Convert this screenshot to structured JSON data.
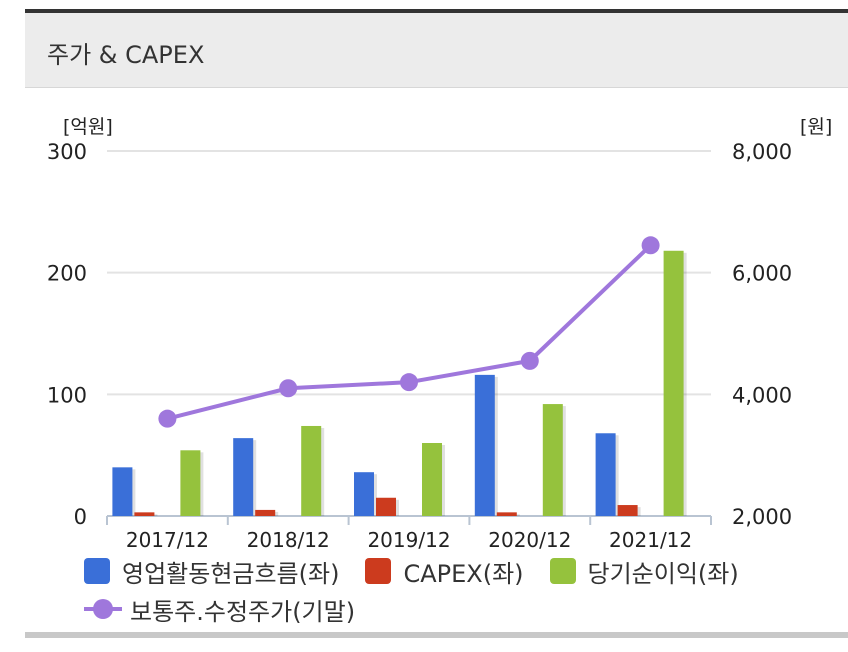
{
  "header": {
    "title": "주가 & CAPEX"
  },
  "chart_data": {
    "type": "bar",
    "categories": [
      "2017/12",
      "2018/12",
      "2019/12",
      "2020/12",
      "2021/12"
    ],
    "series": [
      {
        "name": "영업활동현금흐름(좌)",
        "type": "bar",
        "axis": "left",
        "color": "#3a6fd8",
        "values": [
          40,
          64,
          36,
          116,
          68
        ]
      },
      {
        "name": "CAPEX(좌)",
        "type": "bar",
        "axis": "left",
        "color": "#cc3b1e",
        "values": [
          3,
          5,
          15,
          3,
          9
        ]
      },
      {
        "name": "당기순이익(좌)",
        "type": "bar",
        "axis": "left",
        "color": "#95c23d",
        "values": [
          54,
          74,
          60,
          92,
          218
        ]
      },
      {
        "name": "보통주.수정주가(기말)",
        "type": "line",
        "axis": "right",
        "color": "#9f77dc",
        "values": [
          3600,
          4100,
          4200,
          4550,
          6450
        ]
      }
    ],
    "left_axis": {
      "unit": "[억원]",
      "ylim": [
        0,
        300
      ],
      "ticks": [
        "0",
        "100",
        "200",
        "300"
      ]
    },
    "right_axis": {
      "unit": "[원]",
      "ylim": [
        2000,
        8000
      ],
      "ticks": [
        "2,000",
        "4,000",
        "6,000",
        "8,000"
      ]
    },
    "grid": true,
    "legend_position": "bottom"
  }
}
